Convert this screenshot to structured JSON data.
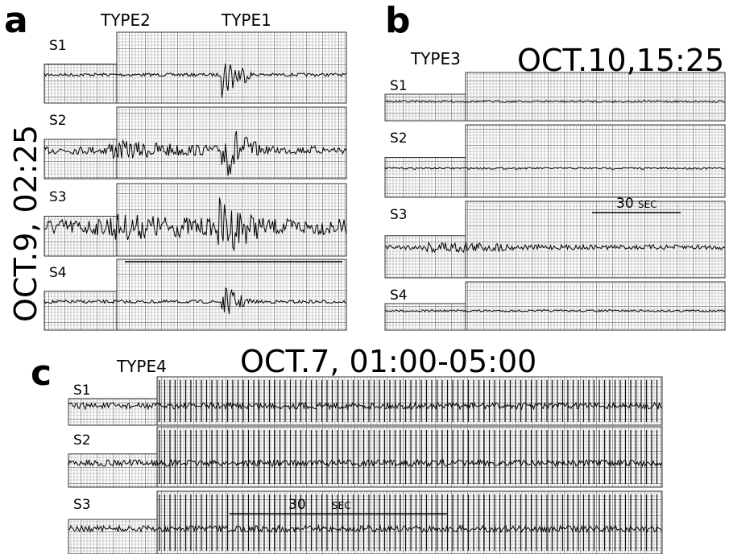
{
  "panels": [
    {
      "label": "a",
      "title": "OCT.9, 02:25",
      "event_types": [
        "TYPE2",
        "TYPE1"
      ],
      "stations": [
        "S1",
        "S2",
        "S3",
        "S4"
      ]
    },
    {
      "label": "b",
      "title": "OCT.10,15:25",
      "event_types": [
        "TYPE3"
      ],
      "stations": [
        "S1",
        "S2",
        "S3",
        "S4"
      ],
      "scale": {
        "value": "30",
        "unit": "SEC"
      }
    },
    {
      "label": "c",
      "title": "OCT.7, 01:00-05:00",
      "event_types": [
        "TYPE4"
      ],
      "stations": [
        "S1",
        "S2",
        "S3"
      ],
      "scale": {
        "value": "30",
        "unit": "SEC"
      }
    }
  ]
}
